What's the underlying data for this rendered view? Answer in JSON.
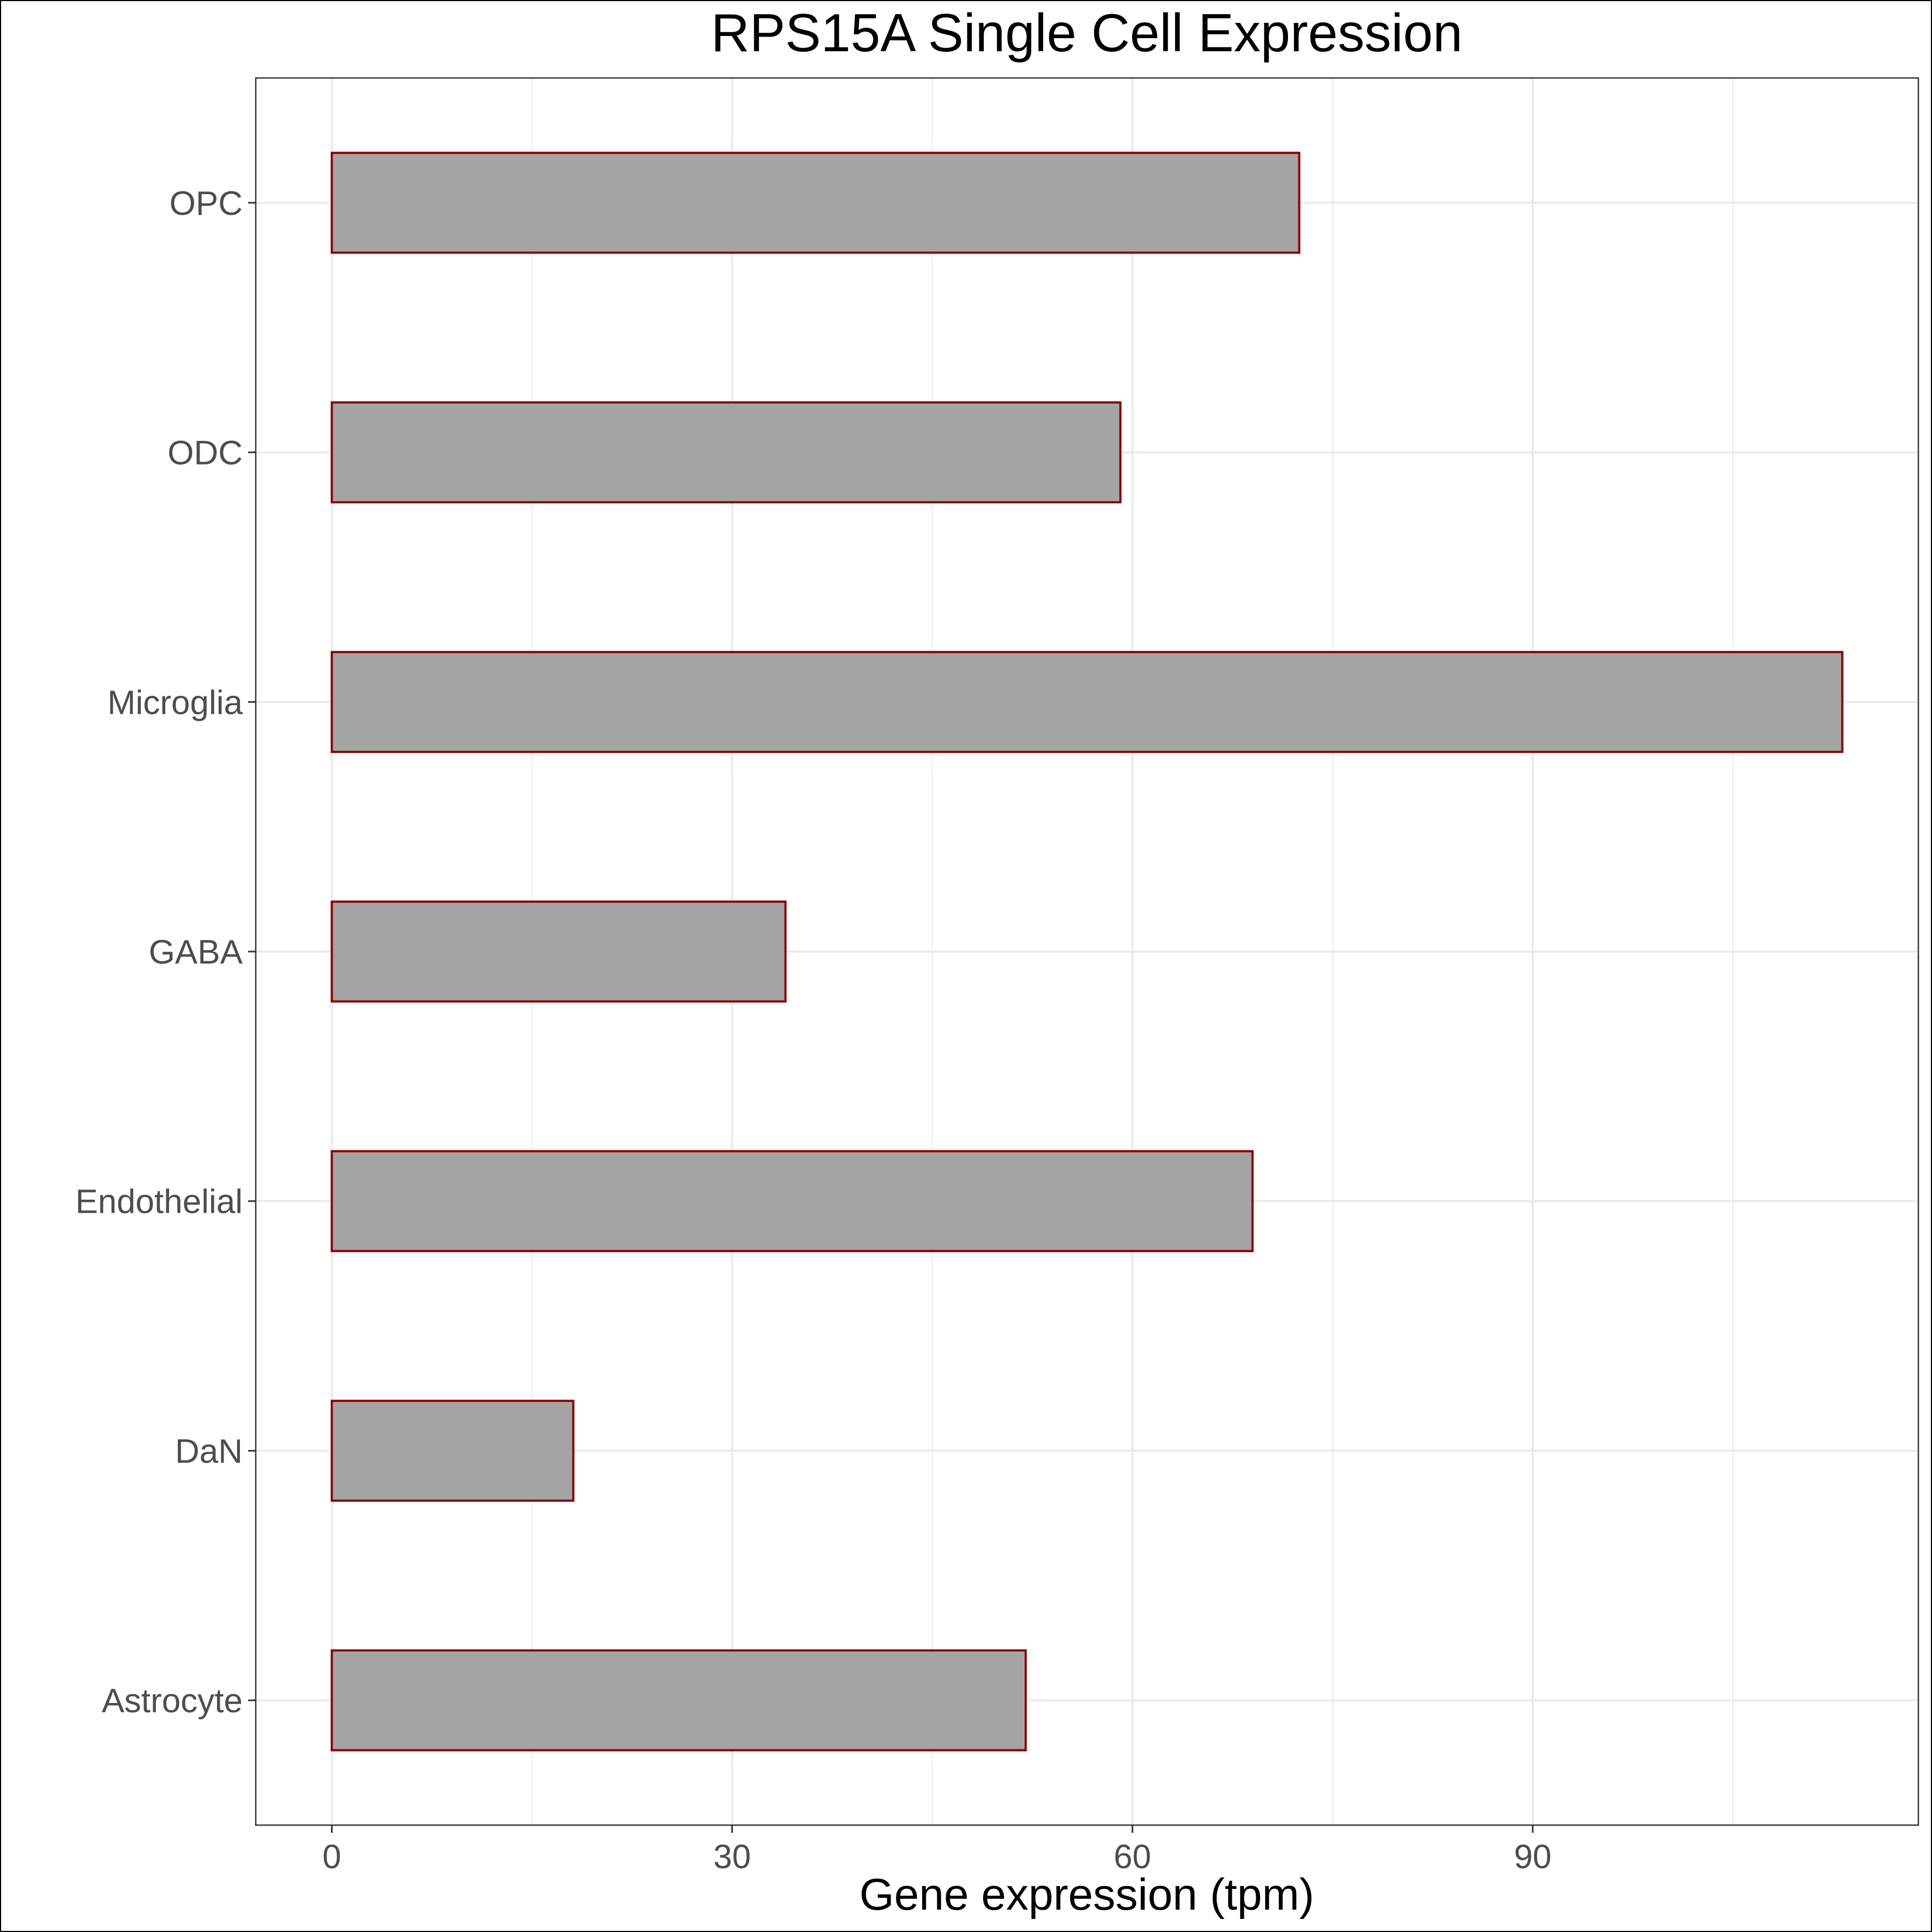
{
  "chart_data": {
    "type": "bar",
    "orientation": "horizontal",
    "title": "RPS15A Single Cell Expression",
    "xlabel": "Gene expression (tpm)",
    "ylabel": "",
    "categories": [
      "Astrocyte",
      "DaN",
      "Endothelial",
      "GABA",
      "Microglia",
      "ODC",
      "OPC"
    ],
    "values": [
      52.0,
      18.1,
      69.0,
      34.0,
      113.2,
      59.1,
      72.5
    ],
    "xlim": [
      -5.7,
      118.9
    ],
    "xticks": [
      0,
      30,
      60,
      90
    ],
    "grid": true,
    "legend": "none",
    "colors": {
      "bar_fill": "#a4a4a4",
      "bar_stroke": "#8b0000",
      "grid": "#ebebeb",
      "panel_border": "#333333"
    }
  }
}
